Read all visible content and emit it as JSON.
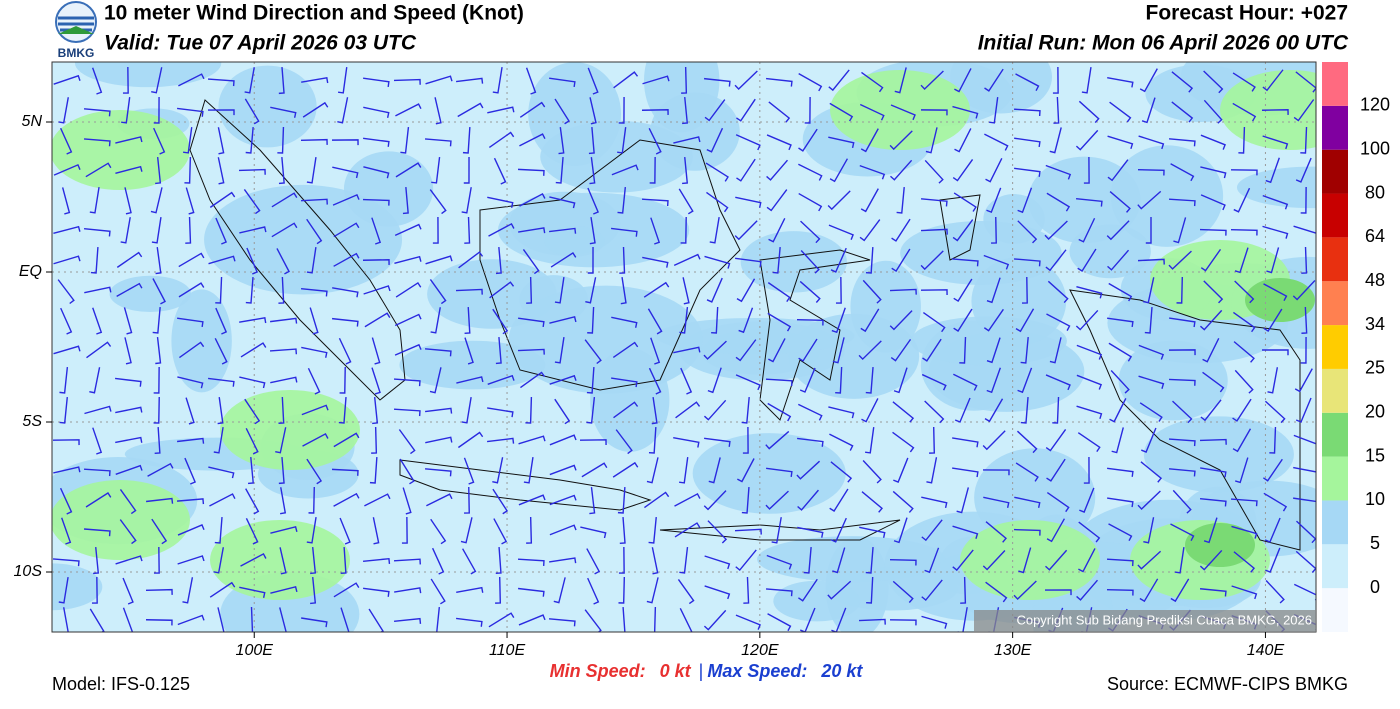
{
  "header": {
    "title": "10 meter Wind Direction and Speed (Knot)",
    "valid": "Valid: Tue 07 April 2026 03 UTC",
    "forecast_hour": "Forecast Hour: +027",
    "initial_run": "Initial Run: Mon 06 April 2026 00 UTC",
    "logo": "BMKG"
  },
  "map": {
    "lon_range": [
      92,
      142
    ],
    "lat_range": [
      -12,
      7
    ],
    "lon_ticks": [
      {
        "value": 100,
        "label": "100E"
      },
      {
        "value": 110,
        "label": "110E"
      },
      {
        "value": 120,
        "label": "120E"
      },
      {
        "value": 130,
        "label": "130E"
      },
      {
        "value": 140,
        "label": "140E"
      }
    ],
    "lat_ticks": [
      {
        "value": 5,
        "label": "5N"
      },
      {
        "value": 0,
        "label": "EQ"
      },
      {
        "value": -5,
        "label": "5S"
      },
      {
        "value": -10,
        "label": "10S"
      }
    ],
    "copyright": "Copyright Sub Bidang Prediksi Cuaca BMKG, 2026"
  },
  "colorbar": {
    "levels": [
      0,
      5,
      10,
      15,
      20,
      25,
      34,
      48,
      64,
      80,
      100,
      120
    ],
    "colors": [
      "#f5f9ff",
      "#cdeefb",
      "#a6d8f5",
      "#a5f59c",
      "#7ada74",
      "#e8e578",
      "#ffcc00",
      "#ff8050",
      "#e83010",
      "#c80000",
      "#a00000",
      "#8000a0",
      "#ff6a80"
    ]
  },
  "footer": {
    "model": "Model: IFS-0.125",
    "min_label": "Min Speed:",
    "min_value": "0 kt",
    "separator": "|",
    "max_label": "Max Speed:",
    "max_value": "20 kt",
    "source": "Source: ECMWF-CIPS BMKG"
  }
}
